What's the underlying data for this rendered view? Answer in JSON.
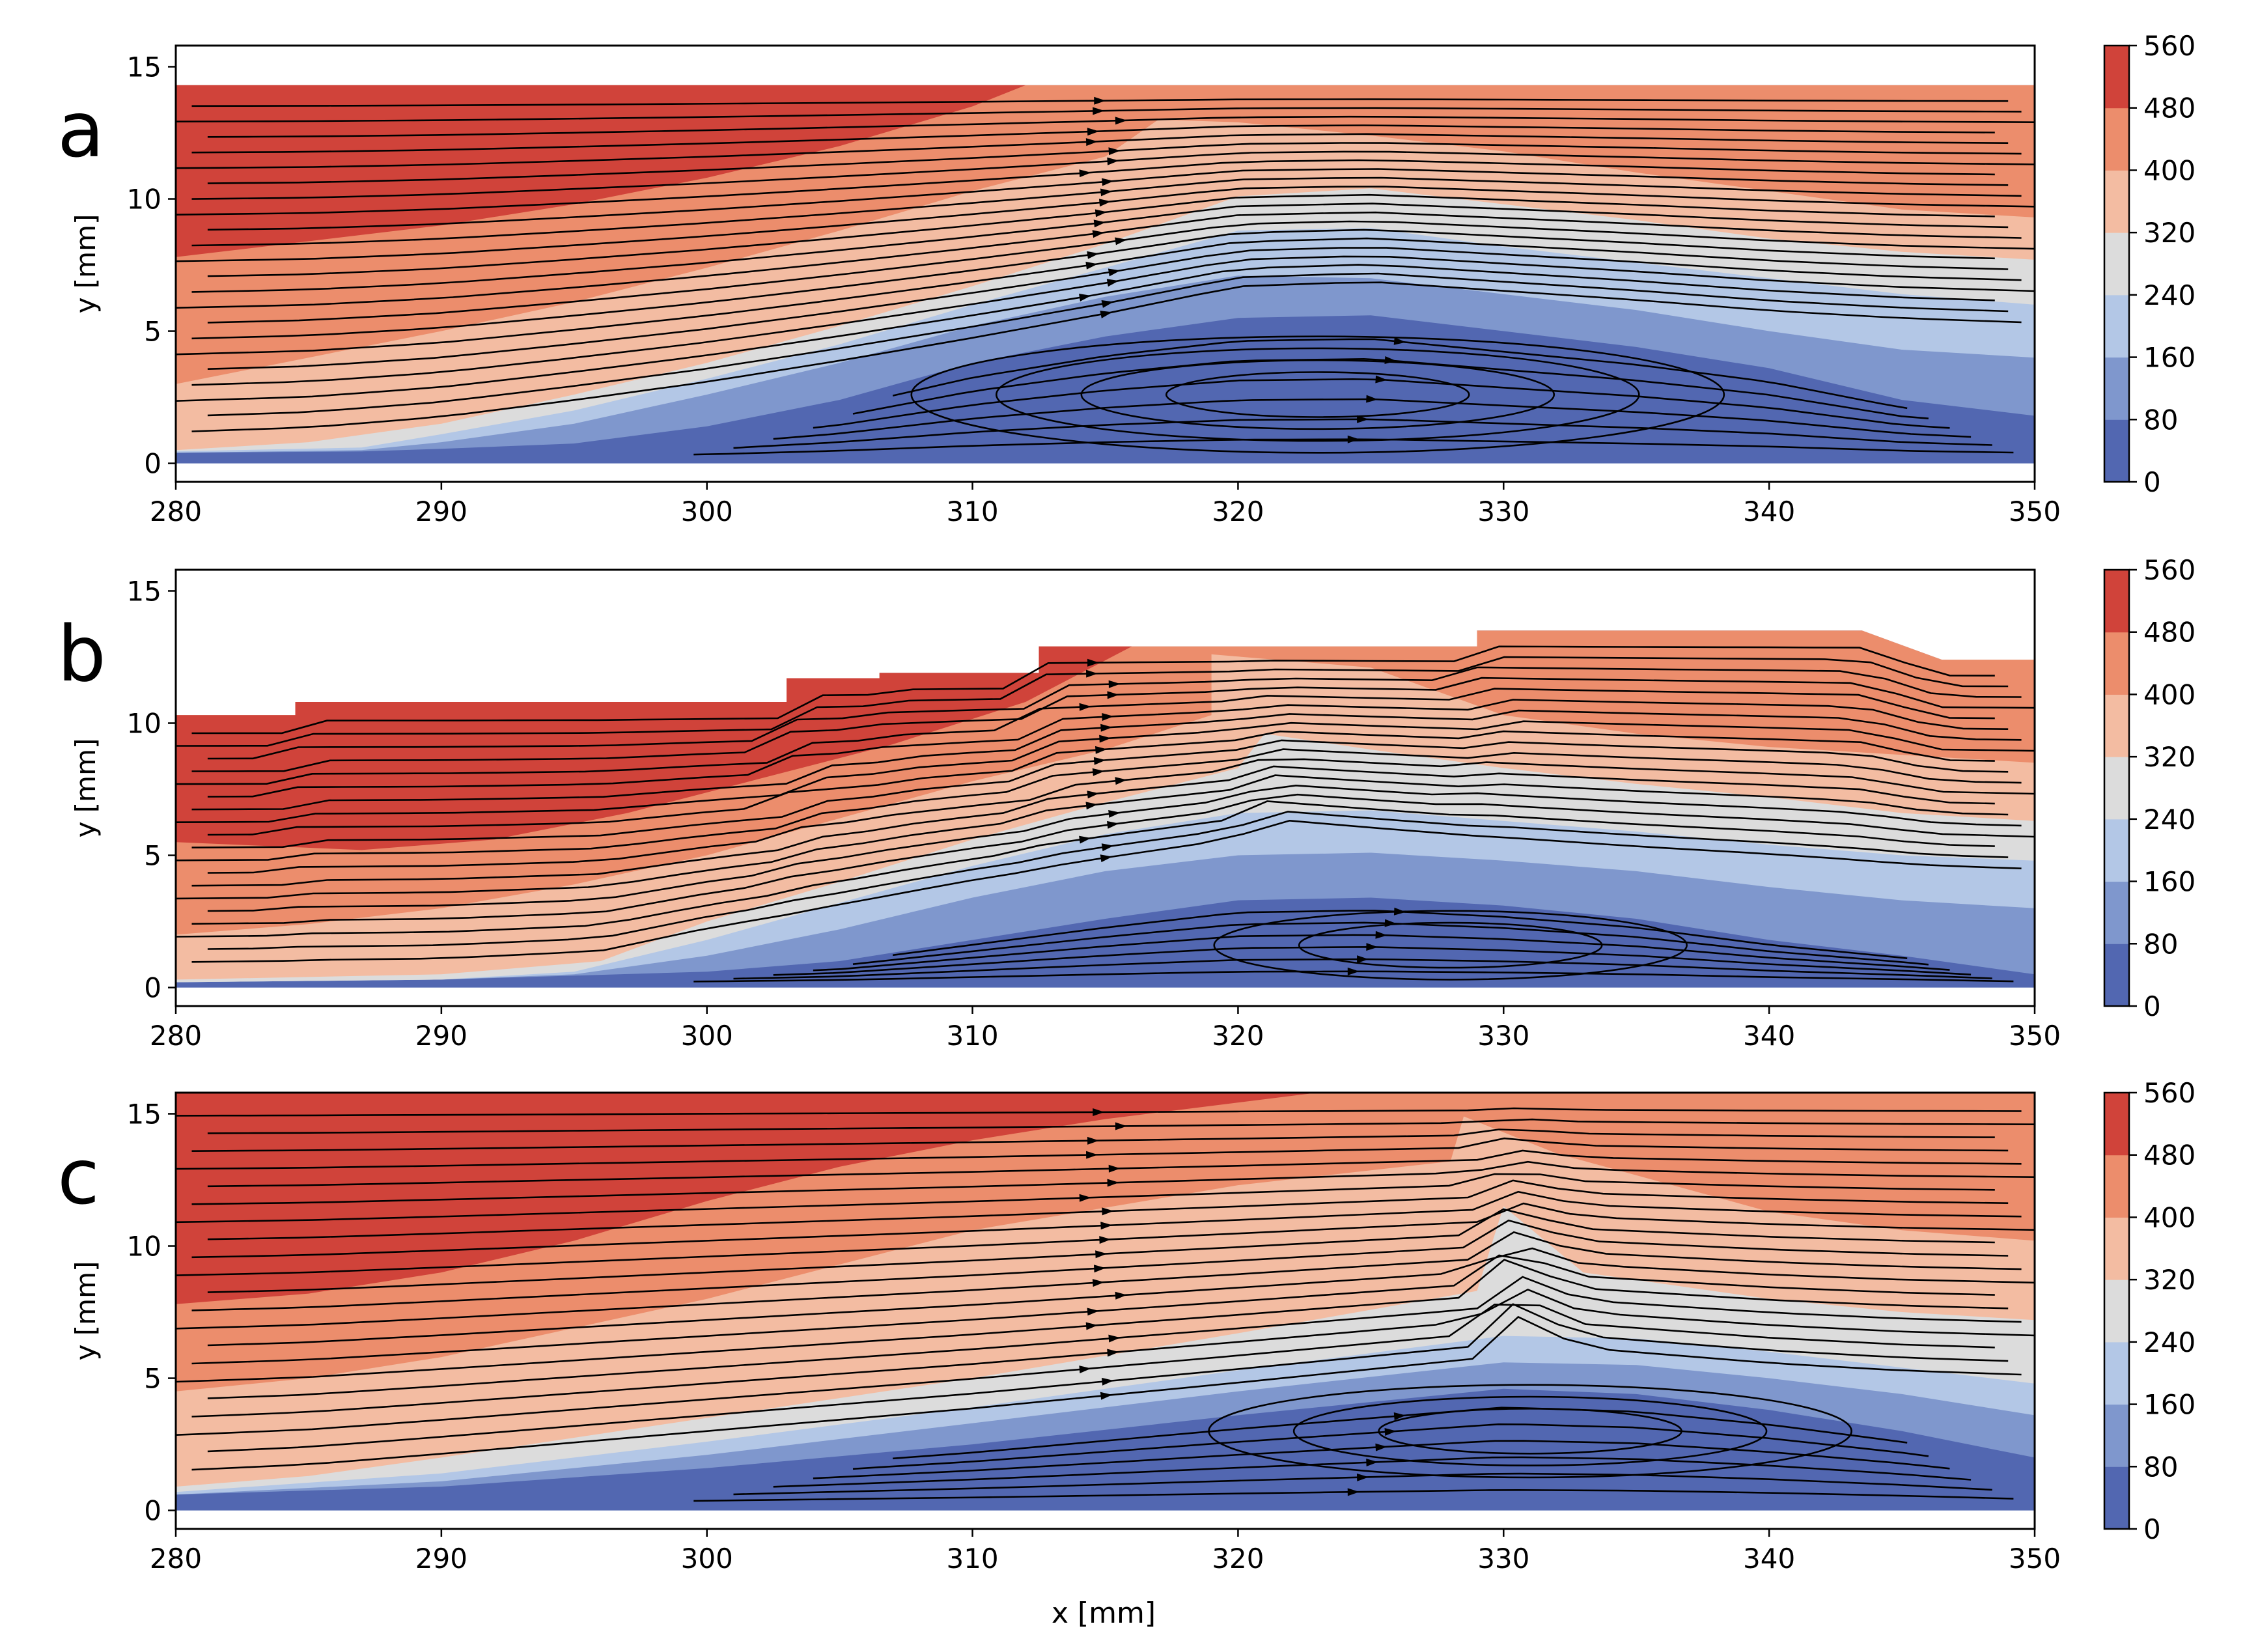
{
  "colors": {
    "levels": [
      "#5267b1",
      "#7f97cd",
      "#b3c7e6",
      "#dcdcdc",
      "#f3bca2",
      "#ec8d6c",
      "#d0433a"
    ],
    "frame": "#000000",
    "streamline": "#000000",
    "background": "#ffffff"
  },
  "colorbar": {
    "ticks": [
      "0",
      "80",
      "160",
      "240",
      "320",
      "400",
      "480",
      "560"
    ]
  },
  "chart_data": [
    {
      "type": "heatmap",
      "panel_label": "a",
      "xlabel": "",
      "ylabel": "y [mm]",
      "xlim": [
        280,
        350
      ],
      "ylim": [
        -0.7,
        15.8
      ],
      "xticks": [
        "280",
        "290",
        "300",
        "310",
        "320",
        "330",
        "340",
        "350"
      ],
      "yticks": [
        "0",
        "5",
        "10",
        "15"
      ],
      "top_boundary": [
        [
          280,
          14.3
        ],
        [
          350,
          14.3
        ]
      ],
      "boundaries": [
        [
          [
            280,
            0.4
          ],
          [
            287,
            0.45
          ],
          [
            290,
            0.55
          ],
          [
            295,
            0.75
          ],
          [
            300,
            1.4
          ],
          [
            305,
            2.4
          ],
          [
            310,
            3.8
          ],
          [
            315,
            4.8
          ],
          [
            320,
            5.5
          ],
          [
            325,
            5.6
          ],
          [
            330,
            5.0
          ],
          [
            335,
            4.4
          ],
          [
            340,
            3.6
          ],
          [
            345,
            2.4
          ],
          [
            350,
            1.8
          ]
        ],
        [
          [
            280,
            0.4
          ],
          [
            287,
            0.5
          ],
          [
            290,
            0.8
          ],
          [
            295,
            1.5
          ],
          [
            300,
            2.6
          ],
          [
            305,
            3.8
          ],
          [
            310,
            5.2
          ],
          [
            315,
            6.3
          ],
          [
            320,
            7.1
          ],
          [
            325,
            7.0
          ],
          [
            330,
            6.4
          ],
          [
            335,
            5.8
          ],
          [
            340,
            5.0
          ],
          [
            345,
            4.3
          ],
          [
            350,
            4.0
          ]
        ],
        [
          [
            280,
            0.45
          ],
          [
            287,
            0.6
          ],
          [
            290,
            1.1
          ],
          [
            295,
            2.0
          ],
          [
            300,
            3.2
          ],
          [
            305,
            4.5
          ],
          [
            310,
            6.0
          ],
          [
            315,
            7.4
          ],
          [
            320,
            8.8
          ],
          [
            325,
            8.9
          ],
          [
            330,
            8.2
          ],
          [
            335,
            7.6
          ],
          [
            340,
            7.0
          ],
          [
            345,
            6.4
          ],
          [
            350,
            6.0
          ]
        ],
        [
          [
            280,
            0.5
          ],
          [
            285,
            0.8
          ],
          [
            290,
            1.5
          ],
          [
            295,
            2.6
          ],
          [
            300,
            3.8
          ],
          [
            305,
            5.2
          ],
          [
            310,
            6.7
          ],
          [
            315,
            8.3
          ],
          [
            320,
            10.1
          ],
          [
            325,
            10.4
          ],
          [
            330,
            9.8
          ],
          [
            335,
            9.2
          ],
          [
            340,
            8.5
          ],
          [
            345,
            8.0
          ],
          [
            350,
            7.7
          ]
        ],
        [
          [
            280,
            3.0
          ],
          [
            285,
            4.0
          ],
          [
            290,
            5.0
          ],
          [
            295,
            6.1
          ],
          [
            300,
            7.4
          ],
          [
            305,
            8.8
          ],
          [
            310,
            10.3
          ],
          [
            315,
            11.6
          ],
          [
            317,
            13.0
          ],
          [
            320,
            12.9
          ],
          [
            325,
            12.4
          ],
          [
            330,
            11.8
          ],
          [
            335,
            11.0
          ],
          [
            340,
            10.3
          ],
          [
            345,
            9.6
          ],
          [
            350,
            9.3
          ]
        ],
        [
          [
            280,
            7.8
          ],
          [
            285,
            8.4
          ],
          [
            290,
            9.0
          ],
          [
            295,
            9.8
          ],
          [
            300,
            10.8
          ],
          [
            305,
            12.0
          ],
          [
            310,
            13.5
          ],
          [
            312,
            14.3
          ],
          [
            350,
            14.3
          ]
        ]
      ],
      "streamlines": {
        "left_count": 22,
        "right_count": 16,
        "vortex": {
          "x": 323,
          "y": 2.6,
          "rings": 4
        }
      }
    },
    {
      "type": "heatmap",
      "panel_label": "b",
      "xlabel": "",
      "ylabel": "y [mm]",
      "xlim": [
        280,
        350
      ],
      "ylim": [
        -0.7,
        15.8
      ],
      "xticks": [
        "280",
        "290",
        "300",
        "310",
        "320",
        "330",
        "340",
        "350"
      ],
      "yticks": [
        "0",
        "5",
        "10",
        "15"
      ],
      "top_boundary": [
        [
          280,
          10.3
        ],
        [
          284.5,
          10.3
        ],
        [
          284.5,
          10.8
        ],
        [
          303,
          10.8
        ],
        [
          303,
          11.7
        ],
        [
          306.5,
          11.7
        ],
        [
          306.5,
          11.9
        ],
        [
          312.5,
          11.9
        ],
        [
          312.5,
          12.9
        ],
        [
          329,
          12.9
        ],
        [
          329,
          13.5
        ],
        [
          343.5,
          13.5
        ],
        [
          346.5,
          12.4
        ],
        [
          350,
          12.4
        ]
      ],
      "boundaries": [
        [
          [
            280,
            0.2
          ],
          [
            290,
            0.3
          ],
          [
            300,
            0.6
          ],
          [
            305,
            1.0
          ],
          [
            310,
            1.8
          ],
          [
            315,
            2.6
          ],
          [
            320,
            3.3
          ],
          [
            325,
            3.4
          ],
          [
            330,
            3.1
          ],
          [
            335,
            2.6
          ],
          [
            340,
            1.8
          ],
          [
            345,
            1.2
          ],
          [
            350,
            0.5
          ]
        ],
        [
          [
            280,
            0.2
          ],
          [
            290,
            0.3
          ],
          [
            295,
            0.5
          ],
          [
            300,
            1.2
          ],
          [
            305,
            2.2
          ],
          [
            310,
            3.4
          ],
          [
            315,
            4.4
          ],
          [
            320,
            5.0
          ],
          [
            325,
            5.1
          ],
          [
            330,
            4.8
          ],
          [
            335,
            4.4
          ],
          [
            340,
            3.8
          ],
          [
            345,
            3.3
          ],
          [
            350,
            3.0
          ]
        ],
        [
          [
            280,
            0.2
          ],
          [
            290,
            0.3
          ],
          [
            295,
            0.6
          ],
          [
            300,
            1.8
          ],
          [
            305,
            3.2
          ],
          [
            310,
            4.6
          ],
          [
            315,
            5.8
          ],
          [
            320,
            6.6
          ],
          [
            325,
            6.7
          ],
          [
            330,
            6.3
          ],
          [
            335,
            5.9
          ],
          [
            340,
            5.4
          ],
          [
            345,
            5.0
          ],
          [
            350,
            4.8
          ]
        ],
        [
          [
            280,
            0.3
          ],
          [
            290,
            0.5
          ],
          [
            296,
            1.0
          ],
          [
            300,
            2.5
          ],
          [
            305,
            4.0
          ],
          [
            310,
            5.6
          ],
          [
            315,
            7.0
          ],
          [
            320,
            8.3
          ],
          [
            321,
            9.6
          ],
          [
            325,
            9.0
          ],
          [
            330,
            8.3
          ],
          [
            335,
            7.7
          ],
          [
            340,
            7.2
          ],
          [
            345,
            6.6
          ],
          [
            350,
            6.3
          ]
        ],
        [
          [
            280,
            2.0
          ],
          [
            285,
            2.4
          ],
          [
            290,
            3.0
          ],
          [
            295,
            3.9
          ],
          [
            300,
            5.0
          ],
          [
            305,
            6.4
          ],
          [
            310,
            7.8
          ],
          [
            315,
            9.0
          ],
          [
            319,
            10.3
          ],
          [
            319,
            12.6
          ],
          [
            325,
            12.1
          ],
          [
            330,
            10.3
          ],
          [
            335,
            9.6
          ],
          [
            340,
            9.1
          ],
          [
            345,
            8.8
          ],
          [
            350,
            8.5
          ]
        ],
        [
          [
            280,
            5.5
          ],
          [
            287,
            5.2
          ],
          [
            292,
            5.6
          ],
          [
            297,
            6.6
          ],
          [
            302,
            7.9
          ],
          [
            307,
            9.2
          ],
          [
            312,
            10.8
          ],
          [
            316,
            12.9
          ],
          [
            312.5,
            12.9
          ],
          [
            312.5,
            11.9
          ],
          [
            306.5,
            11.9
          ],
          [
            306.5,
            11.7
          ],
          [
            303,
            11.7
          ],
          [
            303,
            10.8
          ],
          [
            284.5,
            10.8
          ],
          [
            284.5,
            10.3
          ],
          [
            280,
            10.3
          ]
        ]
      ],
      "streamlines": {
        "left_count": 19,
        "right_count": 17,
        "vortex": {
          "x": 328,
          "y": 1.6,
          "rings": 2
        }
      }
    },
    {
      "type": "heatmap",
      "panel_label": "c",
      "xlabel": "x [mm]",
      "ylabel": "y [mm]",
      "xlim": [
        280,
        350
      ],
      "ylim": [
        -0.7,
        15.8
      ],
      "xticks": [
        "280",
        "290",
        "300",
        "310",
        "320",
        "330",
        "340",
        "350"
      ],
      "yticks": [
        "0",
        "5",
        "10",
        "15"
      ],
      "top_boundary": [
        [
          280,
          15.8
        ],
        [
          350,
          15.8
        ]
      ],
      "boundaries": [
        [
          [
            280,
            0.6
          ],
          [
            290,
            0.9
          ],
          [
            300,
            1.6
          ],
          [
            310,
            2.5
          ],
          [
            320,
            3.6
          ],
          [
            330,
            4.6
          ],
          [
            335,
            4.4
          ],
          [
            340,
            3.8
          ],
          [
            345,
            3.0
          ],
          [
            350,
            2.0
          ]
        ],
        [
          [
            280,
            0.6
          ],
          [
            290,
            1.1
          ],
          [
            300,
            2.1
          ],
          [
            310,
            3.3
          ],
          [
            320,
            4.5
          ],
          [
            330,
            5.6
          ],
          [
            335,
            5.5
          ],
          [
            340,
            5.0
          ],
          [
            345,
            4.4
          ],
          [
            350,
            3.6
          ]
        ],
        [
          [
            280,
            0.7
          ],
          [
            290,
            1.4
          ],
          [
            300,
            2.6
          ],
          [
            310,
            3.9
          ],
          [
            320,
            5.3
          ],
          [
            330,
            6.6
          ],
          [
            335,
            6.5
          ],
          [
            340,
            6.0
          ],
          [
            345,
            5.4
          ],
          [
            350,
            4.8
          ]
        ],
        [
          [
            280,
            0.9
          ],
          [
            285,
            1.3
          ],
          [
            290,
            2.0
          ],
          [
            300,
            3.5
          ],
          [
            310,
            5.0
          ],
          [
            320,
            6.7
          ],
          [
            329,
            8.3
          ],
          [
            330,
            11.5
          ],
          [
            333,
            9.0
          ],
          [
            340,
            8.0
          ],
          [
            345,
            7.5
          ],
          [
            350,
            7.2
          ]
        ],
        [
          [
            280,
            4.5
          ],
          [
            285,
            5.0
          ],
          [
            290,
            5.8
          ],
          [
            295,
            6.9
          ],
          [
            300,
            8.0
          ],
          [
            305,
            9.3
          ],
          [
            310,
            10.6
          ],
          [
            320,
            12.3
          ],
          [
            328,
            13.2
          ],
          [
            328.5,
            14.9
          ],
          [
            332,
            13.5
          ],
          [
            340,
            11.3
          ],
          [
            345,
            10.6
          ],
          [
            350,
            10.2
          ]
        ],
        [
          [
            280,
            7.8
          ],
          [
            285,
            8.2
          ],
          [
            290,
            9.0
          ],
          [
            295,
            10.2
          ],
          [
            300,
            11.7
          ],
          [
            305,
            13.0
          ],
          [
            310,
            14.0
          ],
          [
            315,
            14.8
          ],
          [
            323,
            15.8
          ],
          [
            350,
            15.8
          ]
        ]
      ],
      "streamlines": {
        "left_count": 21,
        "right_count": 15,
        "vortex": {
          "x": 331,
          "y": 3.0,
          "rings": 3
        }
      }
    }
  ]
}
